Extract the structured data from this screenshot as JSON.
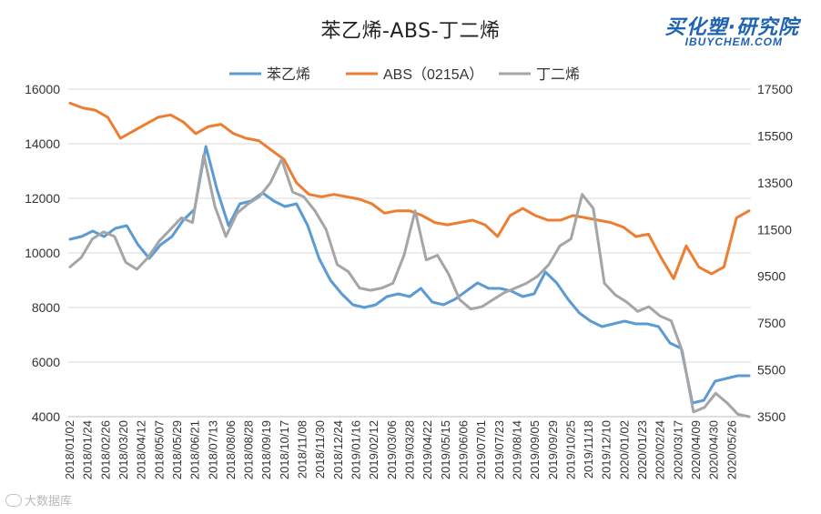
{
  "page": {
    "logo_text": "买化塑·研究院",
    "logo_sub": "IBUYCHEM.COM",
    "watermark": "大数据库"
  },
  "chart_data": {
    "type": "line",
    "title": "苯乙烯-ABS-丁二烯",
    "legend_position": "top",
    "grid": {
      "horizontal": true,
      "vertical": false
    },
    "y_left": {
      "min": 4000,
      "max": 16000,
      "ticks": [
        4000,
        6000,
        8000,
        10000,
        12000,
        14000,
        16000
      ]
    },
    "y_right": {
      "min": 3500,
      "max": 17500,
      "ticks": [
        3500,
        5500,
        7500,
        9500,
        11500,
        13500,
        15500,
        17500
      ]
    },
    "x_labels": [
      "2018/01/02",
      "2018/01/24",
      "2018/02/26",
      "2018/03/20",
      "2018/04/12",
      "2018/05/07",
      "2018/05/29",
      "2018/06/21",
      "2018/07/13",
      "2018/08/06",
      "2018/08/28",
      "2018/09/19",
      "2018/10/17",
      "2018/11/08",
      "2018/11/30",
      "2018/12/24",
      "2019/01/16",
      "2019/02/12",
      "2019/03/06",
      "2019/03/28",
      "2019/04/22",
      "2019/05/15",
      "2019/06/06",
      "2019/07/01",
      "2019/07/23",
      "2019/08/14",
      "2019/09/05",
      "2019/09/29",
      "2019/10/25",
      "2019/11/18",
      "2019/12/10",
      "2020/01/02",
      "2020/01/23",
      "2020/02/24",
      "2020/03/17",
      "2020/04/09",
      "2020/04/30",
      "2020/05/26"
    ],
    "series": [
      {
        "name": "苯乙烯",
        "axis": "left",
        "color": "#5b9bd5",
        "values": [
          10500,
          10600,
          10800,
          10600,
          10900,
          11000,
          10300,
          9800,
          10300,
          10600,
          11200,
          11600,
          13900,
          12300,
          11000,
          11800,
          11900,
          12200,
          11900,
          11700,
          11800,
          11000,
          9800,
          9000,
          8500,
          8100,
          8000,
          8100,
          8400,
          8500,
          8400,
          8700,
          8200,
          8100,
          8300,
          8600,
          8900,
          8700,
          8700,
          8600,
          8400,
          8500,
          9300,
          8900,
          8300,
          7800,
          7500,
          7300,
          7400,
          7500,
          7400,
          7400,
          7300,
          6700,
          6500,
          4500,
          4600,
          5300,
          5400,
          5500,
          5500
        ]
      },
      {
        "name": "ABS（0215A）",
        "axis": "right",
        "color": "#ed7d31",
        "values": [
          16900,
          16700,
          16600,
          16300,
          15400,
          15700,
          16000,
          16300,
          16400,
          16100,
          15600,
          15900,
          16000,
          15600,
          15400,
          15300,
          14900,
          14500,
          13500,
          13000,
          12900,
          13000,
          12900,
          12800,
          12600,
          12200,
          12300,
          12300,
          12100,
          11800,
          11700,
          11800,
          11900,
          11700,
          11200,
          12100,
          12400,
          12100,
          11900,
          11900,
          12100,
          12000,
          11900,
          11800,
          11600,
          11200,
          11300,
          10300,
          9400,
          10800,
          9900,
          9600,
          9900,
          12000,
          12300
        ]
      },
      {
        "name": "丁二烯",
        "axis": "right",
        "color": "#a5a5a5",
        "values": [
          9900,
          10300,
          11100,
          11400,
          11200,
          10100,
          9800,
          10300,
          11000,
          11500,
          12000,
          11800,
          14700,
          12500,
          11200,
          12200,
          12600,
          12900,
          13500,
          14500,
          13100,
          12900,
          12300,
          11500,
          10000,
          9700,
          9000,
          8900,
          9000,
          9200,
          10400,
          12300,
          10200,
          10400,
          9600,
          8500,
          8100,
          8200,
          8500,
          8800,
          9000,
          9200,
          9500,
          10000,
          10800,
          11100,
          13000,
          12400,
          9200,
          8700,
          8400,
          8000,
          8200,
          7800,
          7600,
          6300,
          3700,
          3900,
          4500,
          4100,
          3600,
          3500
        ]
      }
    ]
  }
}
